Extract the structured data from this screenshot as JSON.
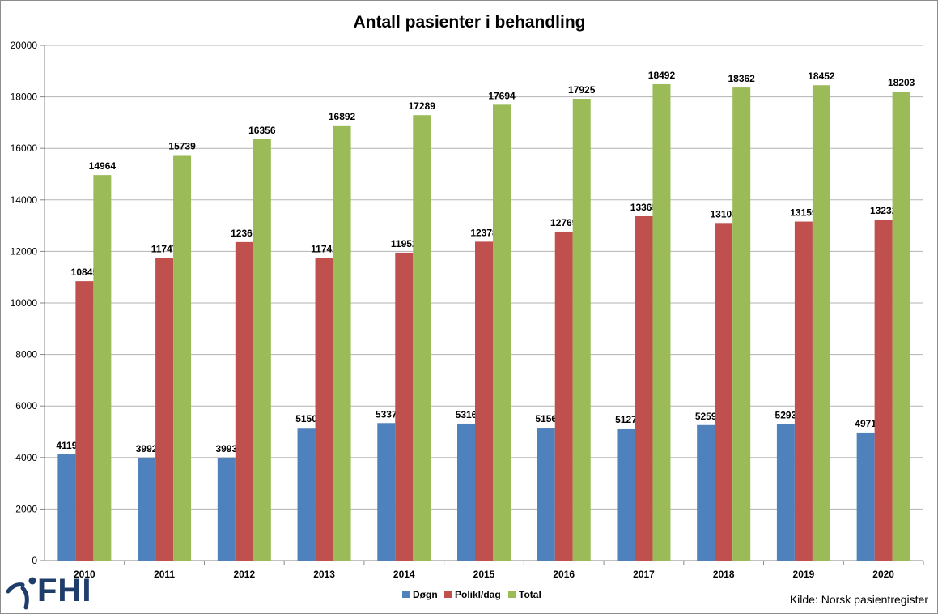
{
  "logo": {
    "text": "FHI"
  },
  "source": "Kilde: Norsk pasientregister",
  "colors": {
    "Døgn": "#4f81bd",
    "Polikl/dag": "#c0504d",
    "Total": "#9bbb59",
    "grid": "#b3b3b3",
    "axis": "#868686"
  },
  "chart_data": {
    "type": "bar",
    "title": "Antall pasienter i behandling",
    "xlabel": "",
    "ylabel": "",
    "categories": [
      "2010",
      "2011",
      "2012",
      "2013",
      "2014",
      "2015",
      "2016",
      "2017",
      "2018",
      "2019",
      "2020"
    ],
    "series": [
      {
        "name": "Døgn",
        "values": [
          4119,
          3992,
          3993,
          5150,
          5337,
          5316,
          5156,
          5127,
          5259,
          5293,
          4971
        ]
      },
      {
        "name": "Polikl/dag",
        "values": [
          10845,
          11747,
          12363,
          11742,
          11952,
          12378,
          12769,
          13365,
          13103,
          13159,
          13232
        ]
      },
      {
        "name": "Total",
        "values": [
          14964,
          15739,
          16356,
          16892,
          17289,
          17694,
          17925,
          18492,
          18362,
          18452,
          18203
        ]
      }
    ],
    "ylim": [
      0,
      20000
    ],
    "yticks": [
      0,
      2000,
      4000,
      6000,
      8000,
      10000,
      12000,
      14000,
      16000,
      18000,
      20000
    ],
    "grid": true,
    "legend": "bottom"
  }
}
